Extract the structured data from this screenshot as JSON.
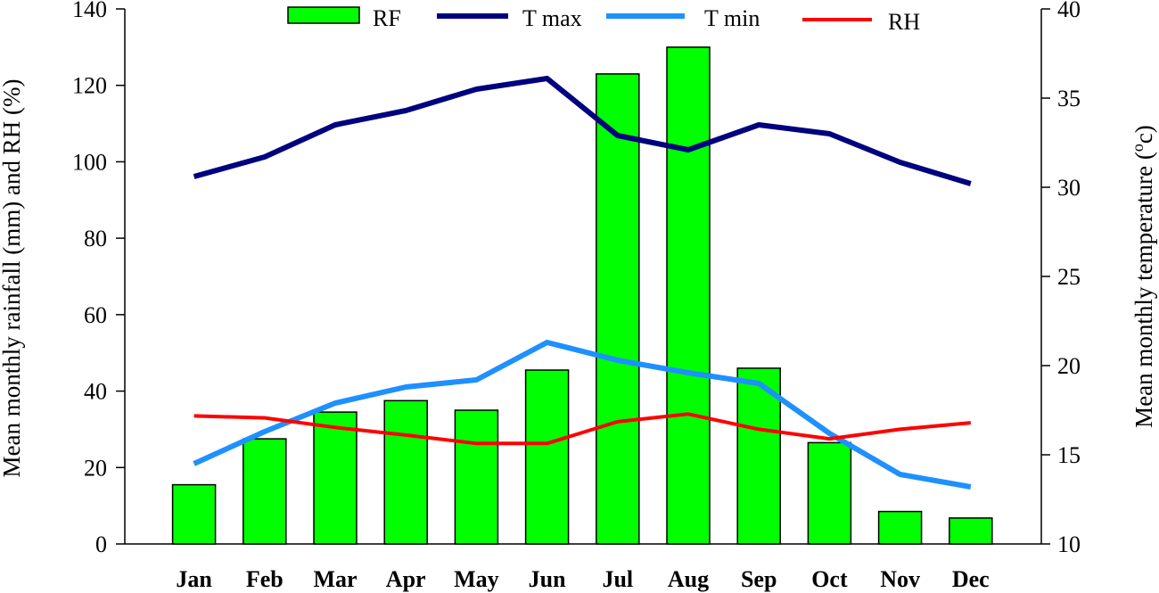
{
  "chart_data": {
    "type": "bar+line",
    "categories": [
      "Jan",
      "Feb",
      "Mar",
      "Apr",
      "May",
      "Jun",
      "Jul",
      "Aug",
      "Sep",
      "Oct",
      "Nov",
      "Dec"
    ],
    "left_axis": {
      "label": "Mean monthly rainfall (mm) and RH (%)",
      "ylim": [
        0,
        140
      ],
      "ticks": [
        0,
        20,
        40,
        60,
        80,
        100,
        120,
        140
      ]
    },
    "right_axis": {
      "label_prefix": "Mean monthly temperature (",
      "label_sup": "o",
      "label_suffix": "c)",
      "ylim": [
        10,
        40
      ],
      "ticks": [
        10,
        15,
        20,
        25,
        30,
        35,
        40
      ]
    },
    "series": [
      {
        "name": "RF",
        "kind": "bar",
        "axis": "left",
        "color": "#00ff00",
        "values": [
          15.5,
          27.5,
          34.5,
          37.5,
          35,
          45.5,
          123,
          130,
          46,
          26.5,
          8.5,
          6.8
        ]
      },
      {
        "name": "T max",
        "kind": "line",
        "axis": "right",
        "color": "#00007f",
        "values": [
          30.6,
          31.7,
          33.5,
          34.3,
          35.5,
          36.1,
          32.9,
          32.1,
          33.5,
          33.0,
          31.4,
          30.2
        ]
      },
      {
        "name": "T min",
        "kind": "line",
        "axis": "right",
        "color": "#1e90ff",
        "values": [
          14.5,
          16.3,
          17.9,
          18.8,
          19.2,
          21.3,
          20.3,
          19.6,
          19.0,
          16.2,
          13.9,
          13.2
        ]
      },
      {
        "name": "RH",
        "kind": "line",
        "axis": "left",
        "color": "#ff0000",
        "values": [
          33.5,
          33.0,
          30.5,
          28.5,
          26.3,
          26.3,
          32.0,
          34.0,
          30.0,
          27.5,
          30.0,
          31.7
        ]
      }
    ],
    "legend_position": "top"
  }
}
